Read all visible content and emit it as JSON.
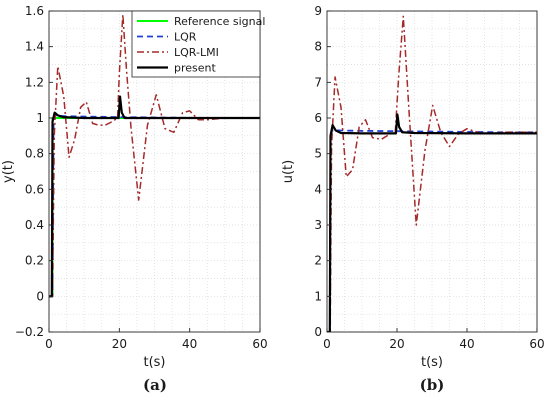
{
  "colors": {
    "reference": "#00ff00",
    "lqr": "#1f3fd6",
    "lqr_lmi": "#a52a2a",
    "present": "#000000",
    "grid": "#d9d9d9",
    "axis": "#262626"
  },
  "legend": {
    "placement": "top-right of panel (a)",
    "entries": [
      {
        "label": "Reference signal",
        "series": "reference",
        "style": "solid"
      },
      {
        "label": "LQR",
        "series": "lqr",
        "style": "dashed"
      },
      {
        "label": "LQR-LMI",
        "series": "lqr_lmi",
        "style": "dashdot"
      },
      {
        "label": "present",
        "series": "present",
        "style": "solid-thick"
      }
    ]
  },
  "chart_data": [
    {
      "type": "line",
      "panel_label": "(a)",
      "xlabel": "t(s)",
      "ylabel": "y(t)",
      "xlim": [
        0,
        60
      ],
      "ylim": [
        -0.2,
        1.6
      ],
      "xticks": [
        0,
        20,
        40,
        60
      ],
      "yticks": [
        -0.2,
        0,
        0.2,
        0.4,
        0.6,
        0.8,
        1,
        1.2,
        1.4,
        1.6
      ],
      "ytick_labels": [
        "−0.2",
        "0",
        "0.2",
        "0.4",
        "0.6",
        "0.8",
        "1",
        "1.2",
        "1.4",
        "1.6"
      ],
      "grid": true,
      "series": [
        {
          "key": "reference",
          "name": "Reference signal",
          "x": [
            0,
            1,
            1,
            60
          ],
          "y": [
            0,
            0,
            1,
            1
          ]
        },
        {
          "key": "lqr",
          "name": "LQR",
          "x": [
            0,
            1,
            1.3,
            2,
            3,
            5,
            10,
            20,
            30,
            40,
            50,
            60
          ],
          "y": [
            0,
            0,
            1.0,
            1.015,
            1.012,
            1.01,
            1.008,
            1.005,
            1.003,
            1.001,
            1.0,
            1.0
          ]
        },
        {
          "key": "lqr_lmi",
          "name": "LQR-LMI",
          "x": [
            0,
            1,
            1.5,
            2.5,
            4.2,
            5.7,
            7.3,
            9.0,
            10.6,
            12.4,
            14.0,
            16.0,
            18.0,
            19.5,
            20.0,
            21.0,
            22.0,
            23.3,
            25.5,
            28.0,
            30.5,
            33.0,
            35.5,
            38.0,
            40.0,
            42.5,
            45.0,
            50.0,
            60.0
          ],
          "y": [
            0,
            0,
            0.9,
            1.29,
            1.12,
            0.78,
            0.88,
            1.06,
            1.09,
            0.97,
            0.96,
            0.96,
            0.98,
            1.0,
            1.25,
            1.58,
            1.28,
            0.95,
            0.54,
            0.96,
            1.13,
            0.94,
            0.92,
            1.03,
            1.04,
            0.99,
            0.99,
            1.0,
            1.0
          ]
        },
        {
          "key": "present",
          "name": "present",
          "x": [
            0,
            0.8,
            1.0,
            1.6,
            2.5,
            4,
            10,
            19.8,
            20.2,
            20.7,
            21.5,
            25,
            40,
            60
          ],
          "y": [
            0,
            0,
            0.98,
            1.03,
            1.015,
            1.005,
            1.0,
            1.0,
            1.12,
            1.03,
            1.0,
            1.0,
            1.0,
            1.0
          ]
        }
      ]
    },
    {
      "type": "line",
      "panel_label": "(b)",
      "xlabel": "t(s)",
      "ylabel": "u(t)",
      "xlim": [
        0,
        60
      ],
      "ylim": [
        0,
        9
      ],
      "xticks": [
        0,
        20,
        40,
        60
      ],
      "yticks": [
        0,
        1,
        2,
        3,
        4,
        5,
        6,
        7,
        8,
        9
      ],
      "ytick_labels": [
        "0",
        "1",
        "2",
        "3",
        "4",
        "5",
        "6",
        "7",
        "8",
        "9"
      ],
      "grid": true,
      "series": [
        {
          "key": "lqr",
          "name": "LQR",
          "x": [
            0,
            0.9,
            1.0,
            1.5,
            2.5,
            4,
            10,
            20,
            30,
            40,
            50,
            60
          ],
          "y": [
            0,
            0,
            5.5,
            5.65,
            5.66,
            5.65,
            5.64,
            5.63,
            5.62,
            5.61,
            5.6,
            5.6
          ]
        },
        {
          "key": "lqr_lmi",
          "name": "LQR-LMI",
          "x": [
            0,
            0.9,
            1.3,
            2.3,
            4.0,
            5.5,
            7.3,
            9.2,
            11.0,
            13.0,
            15.5,
            18.0,
            19.5,
            20.5,
            21.8,
            23.3,
            25.5,
            28.0,
            30.2,
            32.5,
            35.0,
            37.5,
            40.0,
            43.0,
            46.0,
            50.0,
            60.0
          ],
          "y": [
            0,
            0,
            5.2,
            7.15,
            6.3,
            4.35,
            4.55,
            5.75,
            5.95,
            5.45,
            5.4,
            5.55,
            5.6,
            7.2,
            8.85,
            6.4,
            3.0,
            5.1,
            6.35,
            5.6,
            5.2,
            5.55,
            5.7,
            5.6,
            5.55,
            5.6,
            5.6
          ]
        },
        {
          "key": "present",
          "name": "present",
          "x": [
            0,
            0.8,
            1.0,
            1.6,
            2.5,
            4,
            10,
            19.7,
            20.1,
            20.6,
            21.5,
            25,
            40,
            60
          ],
          "y": [
            0,
            0,
            5.5,
            5.8,
            5.65,
            5.58,
            5.57,
            5.57,
            6.1,
            5.75,
            5.6,
            5.58,
            5.57,
            5.57
          ]
        }
      ]
    }
  ]
}
